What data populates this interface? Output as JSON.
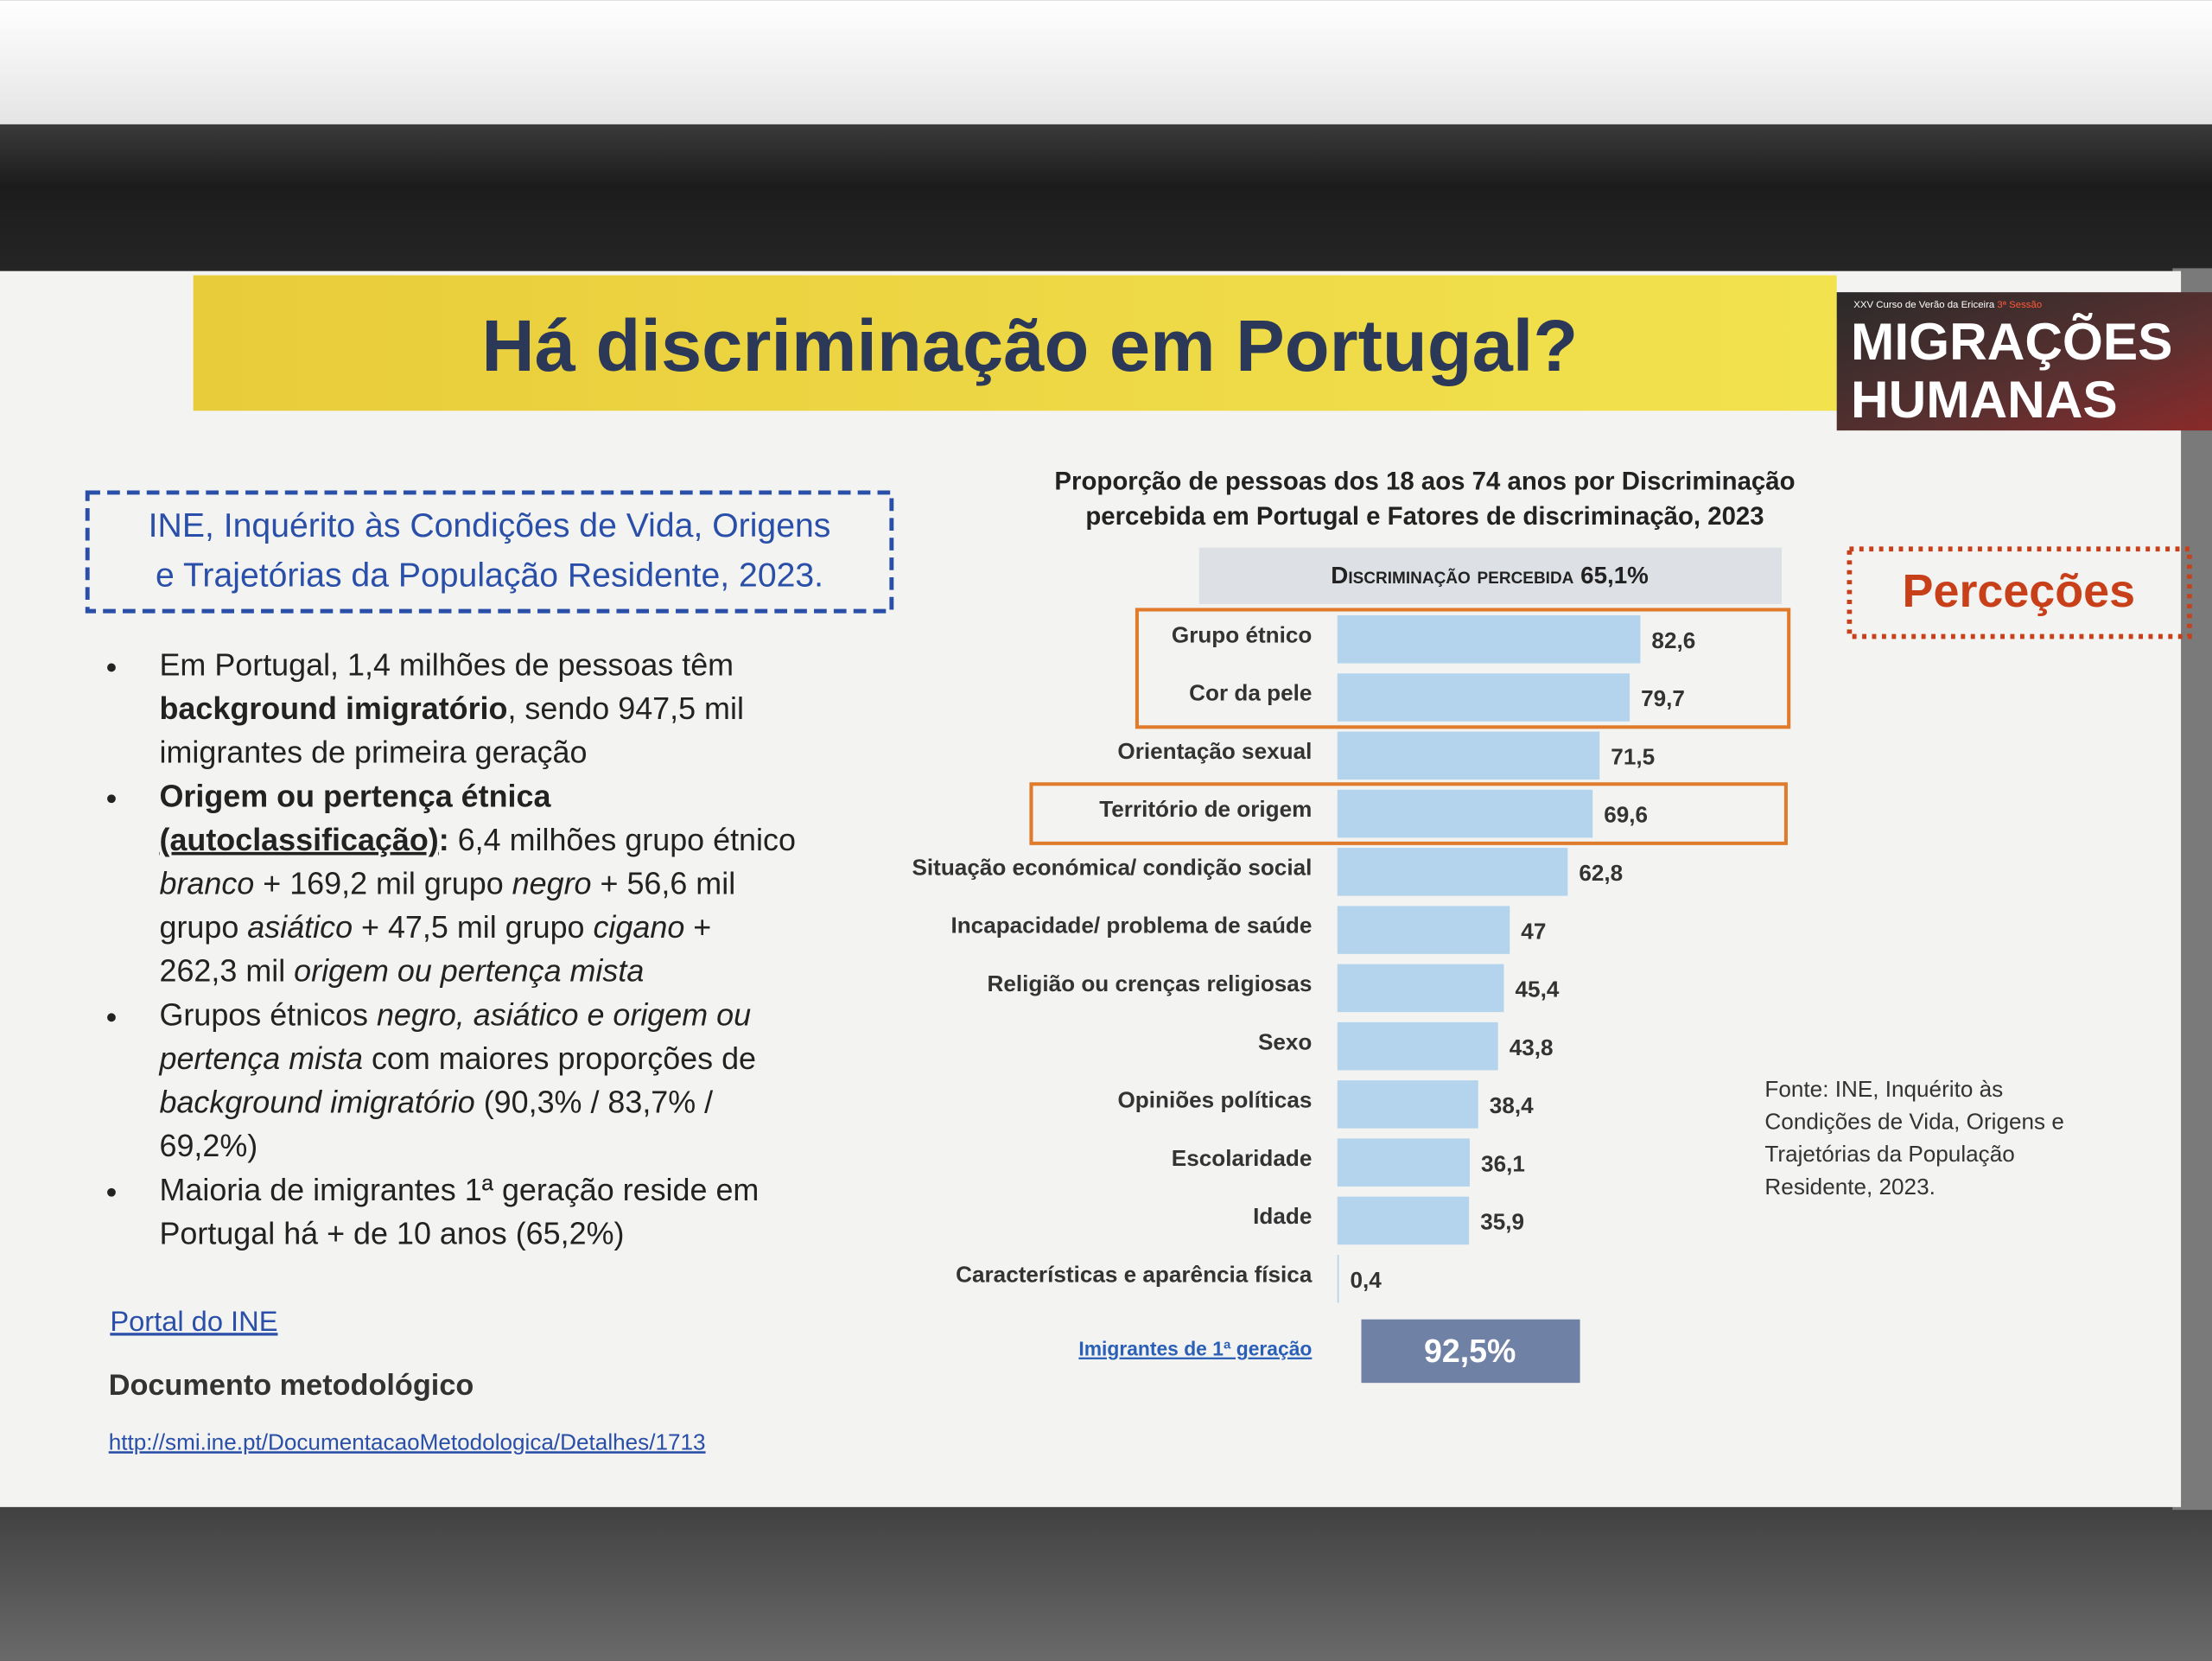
{
  "slide": {
    "title": "Há discriminação em Portugal?",
    "logo": {
      "caption": "XXV Curso de Verão da Ericeira",
      "session": "3ª Sessão",
      "line1": "MIGRAÇÕES",
      "line2": "HUMANAS"
    },
    "source_box": [
      "INE, Inquérito às Condições de Vida, Origens",
      "e Trajetórias da População Residente, 2023."
    ],
    "bullets": [
      [
        [
          {
            "text": "Em Portugal, 1,4 milhões de pessoas têm"
          }
        ],
        [
          {
            "text": "background imigratório",
            "style": "b"
          },
          {
            "text": ", sendo 947,5 mil"
          }
        ],
        [
          {
            "text": "imigrantes de primeira geração"
          }
        ]
      ],
      [
        [
          {
            "text": "Origem ou pertença étnica",
            "style": "b"
          }
        ],
        [
          {
            "text": "(autoclassificação)",
            "style": "bu"
          },
          {
            "text": ":",
            "style": "b"
          },
          {
            "text": " 6,4 milhões grupo étnico"
          }
        ],
        [
          {
            "text": "branco",
            "style": "i"
          },
          {
            "text": " + 169,2 mil grupo "
          },
          {
            "text": "negro",
            "style": "i"
          },
          {
            "text": " + 56,6 mil"
          }
        ],
        [
          {
            "text": "grupo "
          },
          {
            "text": "asiático",
            "style": "i"
          },
          {
            "text": " + 47,5 mil grupo "
          },
          {
            "text": "cigano",
            "style": "i"
          },
          {
            "text": " +"
          }
        ],
        [
          {
            "text": "262,3 mil "
          },
          {
            "text": "origem ou pertença mista",
            "style": "i"
          }
        ]
      ],
      [
        [
          {
            "text": "Grupos étnicos "
          },
          {
            "text": "negro, asiático e origem ou",
            "style": "i"
          }
        ],
        [
          {
            "text": "pertença mista",
            "style": "i"
          },
          {
            "text": " com maiores proporções de"
          }
        ],
        [
          {
            "text": "background imigratório",
            "style": "i"
          },
          {
            "text": " (90,3% / 83,7% /"
          }
        ],
        [
          {
            "text": "69,2%)"
          }
        ]
      ],
      [
        [
          {
            "text": "Maioria de imigrantes 1ª geração reside em"
          }
        ],
        [
          {
            "text": "Portugal há + de 10 anos (65,2%)"
          }
        ]
      ]
    ],
    "links": {
      "portal": "Portal do INE",
      "doc_heading": "Documento metodológico",
      "url": "http://smi.ine.pt/DocumentacaoMetodologica/Detalhes/1713"
    },
    "tag": "Perceções",
    "footnote": [
      "Fonte: INE, Inquérito às",
      "Condições de Vida, Origens e",
      "Trajetórias da População",
      "Residente, 2023."
    ]
  },
  "chart_data": {
    "type": "bar",
    "orientation": "horizontal",
    "title": [
      "Proporção de pessoas dos 18 aos 74 anos por Discriminação",
      "percebida em Portugal e Fatores de discriminação, 2023"
    ],
    "header": {
      "label": "Discriminação percebida",
      "value": "65,1%"
    },
    "categories": [
      "Grupo étnico",
      "Cor da pele",
      "Orientação sexual",
      "Território de origem",
      "Situação económica/ condição social",
      "Incapacidade/ problema de saúde",
      "Religião ou crenças religiosas",
      "Sexo",
      "Opiniões políticas",
      "Escolaridade",
      "Idade",
      "Características e aparência física"
    ],
    "values": [
      82.6,
      79.7,
      71.5,
      69.6,
      62.8,
      47,
      45.4,
      43.8,
      38.4,
      36.1,
      35.9,
      0.4
    ],
    "value_labels": [
      "82,6",
      "79,7",
      "71,5",
      "69,6",
      "62,8",
      "47",
      "45,4",
      "43,8",
      "38,4",
      "36,1",
      "35,9",
      "0,4"
    ],
    "color": "#b3d4ec",
    "xlim": [
      0,
      100
    ],
    "highlight": [
      [
        0,
        1
      ],
      [
        3
      ]
    ],
    "highlight_color": "#e07b2c",
    "footer": {
      "label": "Imigrantes de 1ª geração",
      "value": "92,5%"
    }
  }
}
